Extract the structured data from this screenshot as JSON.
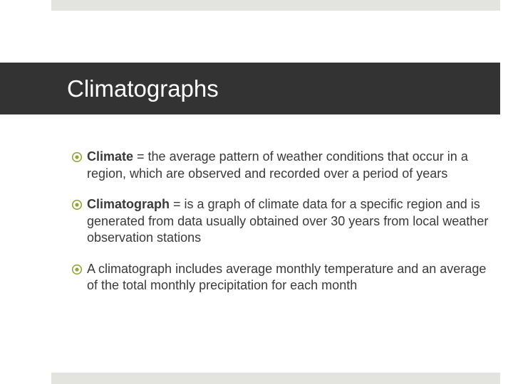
{
  "slide": {
    "title": "Climatographs",
    "accent_color": "#93a53a",
    "bullets": [
      {
        "term": "Climate",
        "text": " = the average pattern of weather conditions that occur in a region, which are observed and recorded over a period of years"
      },
      {
        "term": "Climatograph",
        "text": " = is a graph of climate data for a specific region and is generated from data usually obtained over 30 years from local weather observation stations"
      },
      {
        "term": "",
        "text": "A climatograph includes average monthly temperature and an average of the total monthly precipitation for each month"
      }
    ]
  }
}
